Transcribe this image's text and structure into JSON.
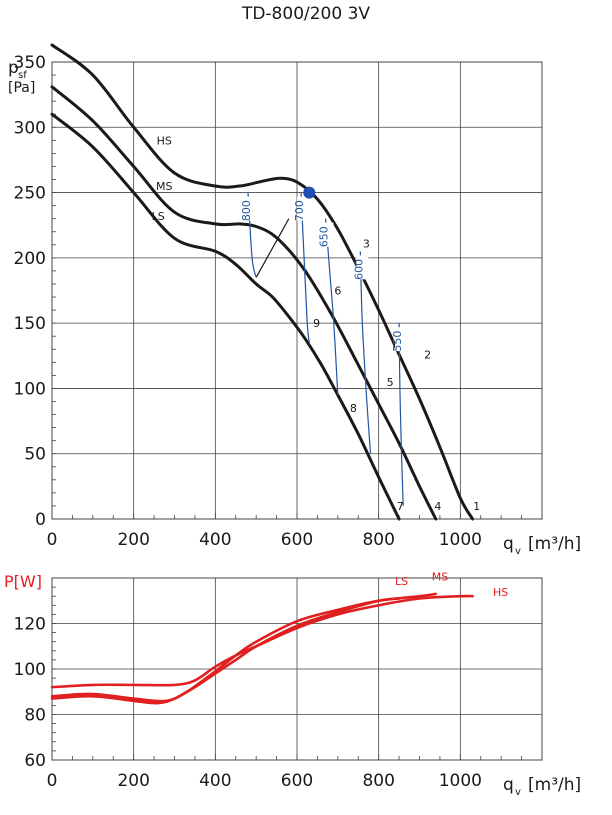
{
  "title": "TD-800/200 3V",
  "colors": {
    "curve": "#1a1a1a",
    "power": "#e02020",
    "rpm": "#2255a0",
    "grid": "#444444",
    "op_point": "#1f4fb0"
  },
  "chart_data": [
    {
      "type": "line",
      "ylabel_main": "p",
      "ylabel_sub": "sf",
      "yunit": "[Pa]",
      "xlabel_main": "q",
      "xlabel_sub": "v",
      "xunit": "[m³/h]",
      "xlim": [
        0,
        1200
      ],
      "ylim": [
        0,
        350
      ],
      "x_ticks": [
        0,
        200,
        400,
        600,
        800,
        1000
      ],
      "y_ticks": [
        0,
        50,
        100,
        150,
        200,
        250,
        300,
        350
      ],
      "grid": true,
      "series": [
        {
          "name": "HS",
          "x": [
            0,
            100,
            200,
            300,
            400,
            460,
            520,
            560,
            600,
            650,
            700,
            750,
            800,
            850,
            900,
            950,
            1000,
            1030
          ],
          "y": [
            363,
            340,
            300,
            265,
            255,
            255,
            259,
            261,
            258,
            245,
            222,
            192,
            160,
            126,
            92,
            55,
            16,
            0
          ]
        },
        {
          "name": "MS",
          "x": [
            0,
            100,
            200,
            300,
            400,
            460,
            500,
            540,
            580,
            620,
            660,
            700,
            750,
            800,
            850,
            900,
            940
          ],
          "y": [
            331,
            305,
            270,
            235,
            226,
            226,
            224,
            218,
            206,
            190,
            170,
            148,
            118,
            88,
            58,
            25,
            0
          ]
        },
        {
          "name": "LS",
          "x": [
            0,
            100,
            200,
            300,
            400,
            450,
            500,
            540,
            580,
            620,
            660,
            700,
            750,
            800,
            850
          ],
          "y": [
            310,
            285,
            250,
            215,
            205,
            195,
            180,
            170,
            155,
            138,
            118,
            95,
            65,
            32,
            0
          ]
        }
      ],
      "rpm_lines": [
        {
          "label": "800",
          "x": [
            480,
            490,
            500
          ],
          "y": [
            250,
            200,
            185
          ]
        },
        {
          "label": "700",
          "x": [
            610,
            618,
            625,
            630
          ],
          "y": [
            250,
            195,
            150,
            135
          ]
        },
        {
          "label": "650",
          "x": [
            670,
            680,
            690,
            700
          ],
          "y": [
            230,
            190,
            150,
            95
          ]
        },
        {
          "label": "600",
          "x": [
            755,
            760,
            770,
            780
          ],
          "y": [
            205,
            150,
            95,
            50
          ]
        },
        {
          "label": "550",
          "x": [
            850,
            852,
            856,
            860
          ],
          "y": [
            150,
            100,
            50,
            10
          ]
        }
      ],
      "system_points": [
        {
          "label": "1",
          "x": 1040,
          "y": 7
        },
        {
          "label": "2",
          "x": 920,
          "y": 123
        },
        {
          "label": "3",
          "x": 770,
          "y": 208
        },
        {
          "label": "4",
          "x": 945,
          "y": 7
        },
        {
          "label": "5",
          "x": 828,
          "y": 102
        },
        {
          "label": "6",
          "x": 700,
          "y": 172
        },
        {
          "label": "7",
          "x": 853,
          "y": 7
        },
        {
          "label": "8",
          "x": 738,
          "y": 82
        },
        {
          "label": "9",
          "x": 648,
          "y": 147
        }
      ],
      "operating_point": {
        "x": 630,
        "y": 250
      },
      "curve_labels": [
        {
          "label": "HS",
          "x": 275,
          "y": 287
        },
        {
          "label": "MS",
          "x": 275,
          "y": 252
        },
        {
          "label": "LS",
          "x": 260,
          "y": 229
        }
      ]
    },
    {
      "type": "line",
      "ylabel": "P[W]",
      "xlabel_main": "q",
      "xlabel_sub": "v",
      "xunit": "[m³/h]",
      "xlim": [
        0,
        1200
      ],
      "ylim": [
        60,
        140
      ],
      "x_ticks": [
        0,
        200,
        400,
        600,
        800,
        1000
      ],
      "y_ticks": [
        60,
        80,
        100,
        120
      ],
      "grid": true,
      "series": [
        {
          "name": "LS",
          "x": [
            0,
            100,
            200,
            260,
            300,
            350,
            400,
            450,
            500,
            600,
            700,
            800,
            850
          ],
          "y": [
            87,
            88,
            86,
            85,
            87,
            92,
            98,
            104,
            110,
            119,
            125,
            130,
            131
          ]
        },
        {
          "name": "MS",
          "x": [
            0,
            100,
            200,
            280,
            330,
            400,
            450,
            500,
            600,
            700,
            800,
            900,
            940
          ],
          "y": [
            88,
            89,
            87,
            86,
            90,
            99,
            106,
            112,
            121,
            126,
            130,
            132,
            133
          ]
        },
        {
          "name": "HS",
          "x": [
            0,
            100,
            200,
            300,
            350,
            400,
            450,
            500,
            600,
            700,
            800,
            900,
            1000,
            1030
          ],
          "y": [
            92,
            93,
            93,
            93,
            95,
            101,
            106,
            110,
            118,
            124,
            128,
            131,
            132,
            132
          ]
        }
      ],
      "labels": [
        {
          "label": "LS",
          "x": 840,
          "y": 137
        },
        {
          "label": "MS",
          "x": 930,
          "y": 139
        },
        {
          "label": "HS",
          "x": 1080,
          "y": 132
        }
      ]
    }
  ]
}
